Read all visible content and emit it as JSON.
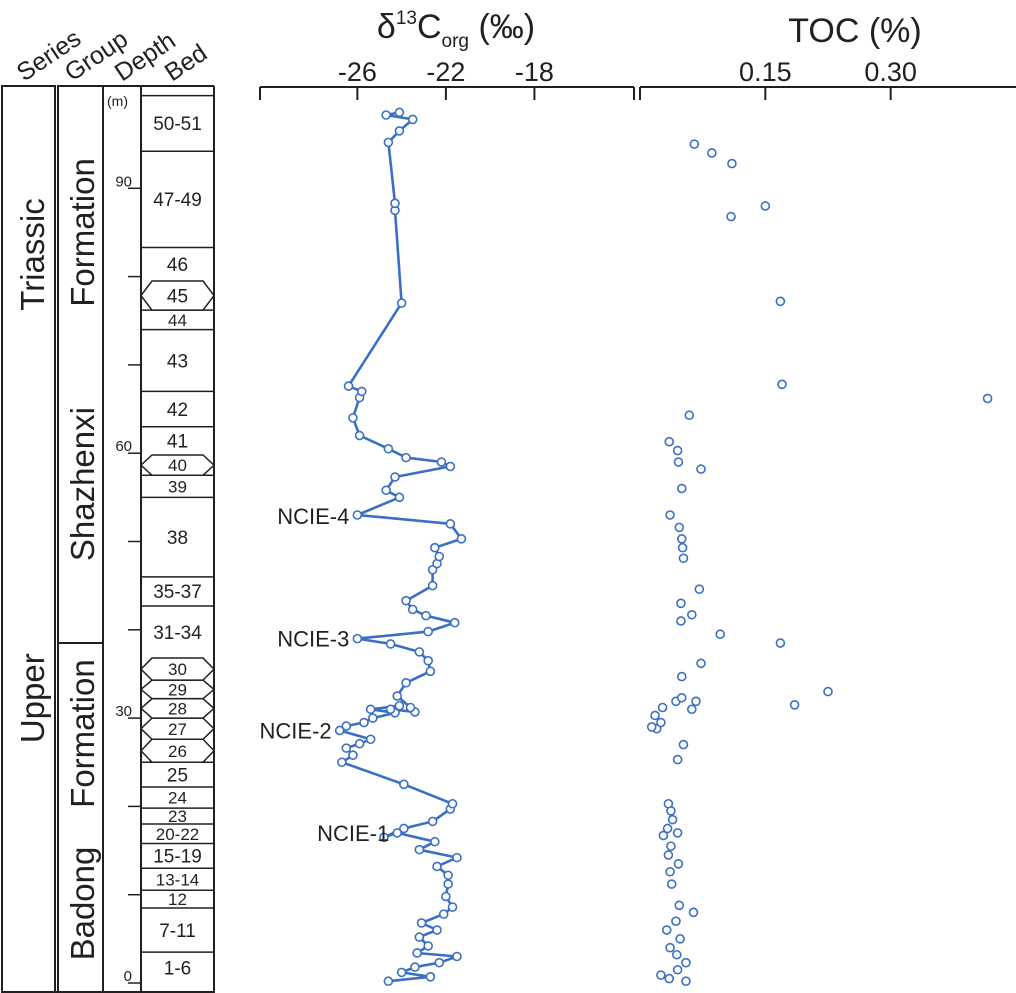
{
  "colors": {
    "series": "#3b6fc4",
    "ink": "#231f20"
  },
  "column_headers": {
    "series": "Series",
    "group": "Group",
    "depth": "Depth",
    "bed": "Bed"
  },
  "units": {
    "depth": "(m)"
  },
  "series_labels": [
    {
      "text": "Upper",
      "from": 0,
      "to": 64.5
    },
    {
      "text": "Triassic",
      "from": 64.5,
      "to": 100.5
    }
  ],
  "group_labels": [
    {
      "text": "Badong",
      "from": 0,
      "to": 18
    },
    {
      "text": "Formation",
      "from": 18,
      "to": 38.5
    },
    {
      "text": "Shazhenxi",
      "from": 43,
      "to": 70
    },
    {
      "text": "Formation",
      "from": 76,
      "to": 94
    }
  ],
  "group_boundary_depth": 38.5,
  "depth_ticks": [
    {
      "value": 0,
      "label": "0"
    },
    {
      "value": 10,
      "label": ""
    },
    {
      "value": 20,
      "label": ""
    },
    {
      "value": 30,
      "label": "30"
    },
    {
      "value": 40,
      "label": ""
    },
    {
      "value": 50,
      "label": ""
    },
    {
      "value": 60,
      "label": "60"
    },
    {
      "value": 70,
      "label": ""
    },
    {
      "value": 80,
      "label": ""
    },
    {
      "value": 90,
      "label": "90"
    }
  ],
  "beds": [
    {
      "label": "1-6",
      "top": 3.5,
      "shape": "rect"
    },
    {
      "label": "7-11",
      "top": 8.5,
      "shape": "rect"
    },
    {
      "label": "12",
      "top": 10.5,
      "shape": "rect"
    },
    {
      "label": "13-14",
      "top": 13.0,
      "shape": "rect"
    },
    {
      "label": "15-19",
      "top": 15.8,
      "shape": "rect"
    },
    {
      "label": "20-22",
      "top": 18.0,
      "shape": "rect"
    },
    {
      "label": "23",
      "top": 19.8,
      "shape": "rect"
    },
    {
      "label": "24",
      "top": 22.2,
      "shape": "rect"
    },
    {
      "label": "25",
      "top": 25.0,
      "shape": "rect"
    },
    {
      "label": "26",
      "top": 27.6,
      "shape": "hex"
    },
    {
      "label": "27",
      "top": 30.0,
      "shape": "hex"
    },
    {
      "label": "28",
      "top": 32.2,
      "shape": "hex"
    },
    {
      "label": "29",
      "top": 34.3,
      "shape": "hex"
    },
    {
      "label": "30",
      "top": 36.8,
      "shape": "hex"
    },
    {
      "label": "31-34",
      "top": 42.7,
      "shape": "rect"
    },
    {
      "label": "35-37",
      "top": 46.0,
      "shape": "rect"
    },
    {
      "label": "38",
      "top": 55.0,
      "shape": "rect"
    },
    {
      "label": "39",
      "top": 57.5,
      "shape": "rect"
    },
    {
      "label": "40",
      "top": 59.8,
      "shape": "hex"
    },
    {
      "label": "41",
      "top": 63.0,
      "shape": "rect"
    },
    {
      "label": "42",
      "top": 67.0,
      "shape": "rect"
    },
    {
      "label": "43",
      "top": 74.0,
      "shape": "rect"
    },
    {
      "label": "44",
      "top": 76.2,
      "shape": "rect"
    },
    {
      "label": "45",
      "top": 79.5,
      "shape": "hex"
    },
    {
      "label": "46",
      "top": 83.3,
      "shape": "rect"
    },
    {
      "label": "47-49",
      "top": 94.2,
      "shape": "rect"
    },
    {
      "label": "50-51",
      "top": 100.5,
      "shape": "rect"
    }
  ],
  "chart_data": [
    {
      "type": "line",
      "title_parts": {
        "base": "δ",
        "sup": "13",
        "main": "C",
        "sub": "org",
        "unit": " (‰)"
      },
      "x_ticks": [
        -26,
        -22,
        -18
      ],
      "xlim": [
        -30.4,
        -13.5
      ],
      "ylabel": "Depth (m)",
      "ylim": [
        0,
        100.5
      ],
      "annotations": [
        {
          "text": "NCIE-1",
          "depth": 17.0
        },
        {
          "text": "NCIE-2",
          "depth": 28.6
        },
        {
          "text": "NCIE-3",
          "depth": 39.0
        },
        {
          "text": "NCIE-4",
          "depth": 52.9
        }
      ],
      "points": [
        {
          "y": 0.2,
          "x": -24.6
        },
        {
          "y": 0.7,
          "x": -22.7
        },
        {
          "y": 1.2,
          "x": -24.0
        },
        {
          "y": 1.8,
          "x": -23.4
        },
        {
          "y": 2.3,
          "x": -22.3
        },
        {
          "y": 3.0,
          "x": -21.5
        },
        {
          "y": 3.4,
          "x": -23.3
        },
        {
          "y": 4.2,
          "x": -22.8
        },
        {
          "y": 5.2,
          "x": -23.2
        },
        {
          "y": 6.0,
          "x": -22.4
        },
        {
          "y": 6.8,
          "x": -23.1
        },
        {
          "y": 7.8,
          "x": -22.1
        },
        {
          "y": 8.6,
          "x": -21.7
        },
        {
          "y": 9.8,
          "x": -22.0
        },
        {
          "y": 11.2,
          "x": -21.9
        },
        {
          "y": 12.2,
          "x": -21.9
        },
        {
          "y": 13.2,
          "x": -22.4
        },
        {
          "y": 14.2,
          "x": -21.5
        },
        {
          "y": 15.1,
          "x": -23.2
        },
        {
          "y": 16.0,
          "x": -22.5
        },
        {
          "y": 17.0,
          "x": -24.2
        },
        {
          "y": 16.5,
          "x": -24.8
        },
        {
          "y": 17.5,
          "x": -23.9
        },
        {
          "y": 18.3,
          "x": -22.6
        },
        {
          "y": 19.7,
          "x": -21.8
        },
        {
          "y": 20.3,
          "x": -21.7
        },
        {
          "y": 22.5,
          "x": -23.9
        },
        {
          "y": 25.0,
          "x": -26.7
        },
        {
          "y": 25.8,
          "x": -26.2
        },
        {
          "y": 26.6,
          "x": -26.5
        },
        {
          "y": 27.1,
          "x": -25.9
        },
        {
          "y": 27.6,
          "x": -25.4
        },
        {
          "y": 28.6,
          "x": -26.8
        },
        {
          "y": 29.1,
          "x": -26.5
        },
        {
          "y": 29.5,
          "x": -25.7
        },
        {
          "y": 30.0,
          "x": -25.3
        },
        {
          "y": 30.6,
          "x": -24.3
        },
        {
          "y": 31.0,
          "x": -25.4
        },
        {
          "y": 31.4,
          "x": -24.1
        },
        {
          "y": 31.0,
          "x": -24.5
        },
        {
          "y": 30.7,
          "x": -23.4
        },
        {
          "y": 31.2,
          "x": -23.6
        },
        {
          "y": 32.5,
          "x": -24.2
        },
        {
          "y": 34.0,
          "x": -23.8
        },
        {
          "y": 35.3,
          "x": -22.7
        },
        {
          "y": 36.5,
          "x": -22.8
        },
        {
          "y": 37.5,
          "x": -23.2
        },
        {
          "y": 38.4,
          "x": -24.5
        },
        {
          "y": 39.0,
          "x": -26.0
        },
        {
          "y": 39.8,
          "x": -22.8
        },
        {
          "y": 40.8,
          "x": -21.6
        },
        {
          "y": 41.6,
          "x": -22.9
        },
        {
          "y": 42.3,
          "x": -23.5
        },
        {
          "y": 43.3,
          "x": -23.8
        },
        {
          "y": 45.0,
          "x": -22.6
        },
        {
          "y": 46.8,
          "x": -22.6
        },
        {
          "y": 47.5,
          "x": -22.4
        },
        {
          "y": 48.3,
          "x": -22.3
        },
        {
          "y": 49.3,
          "x": -22.5
        },
        {
          "y": 50.3,
          "x": -21.3
        },
        {
          "y": 52.0,
          "x": -21.8
        },
        {
          "y": 53.0,
          "x": -26.0
        },
        {
          "y": 55.0,
          "x": -24.1
        },
        {
          "y": 55.8,
          "x": -24.7
        },
        {
          "y": 57.3,
          "x": -24.3
        },
        {
          "y": 58.5,
          "x": -21.8
        },
        {
          "y": 59.0,
          "x": -22.2
        },
        {
          "y": 59.5,
          "x": -23.8
        },
        {
          "y": 60.5,
          "x": -24.6
        },
        {
          "y": 62.0,
          "x": -25.9
        },
        {
          "y": 64.0,
          "x": -26.2
        },
        {
          "y": 66.3,
          "x": -25.9
        },
        {
          "y": 67.0,
          "x": -25.8
        },
        {
          "y": 67.6,
          "x": -26.4
        },
        {
          "y": 77.0,
          "x": -24.0
        },
        {
          "y": 87.5,
          "x": -24.3
        },
        {
          "y": 88.3,
          "x": -24.3
        },
        {
          "y": 95.2,
          "x": -24.6
        },
        {
          "y": 96.5,
          "x": -24.1
        },
        {
          "y": 97.8,
          "x": -23.5
        },
        {
          "y": 98.3,
          "x": -24.7
        },
        {
          "y": 98.6,
          "x": -24.1
        }
      ]
    },
    {
      "type": "scatter",
      "title": "TOC (%)",
      "x_ticks": [
        0.15,
        0.3
      ],
      "xlim": [
        0,
        0.45
      ],
      "ylim": [
        0,
        100.5
      ],
      "points": [
        {
          "y": 0.2,
          "x": 0.055
        },
        {
          "y": 0.5,
          "x": 0.035
        },
        {
          "y": 0.9,
          "x": 0.025
        },
        {
          "y": 1.5,
          "x": 0.045
        },
        {
          "y": 2.3,
          "x": 0.055
        },
        {
          "y": 3.2,
          "x": 0.044
        },
        {
          "y": 4.0,
          "x": 0.036
        },
        {
          "y": 5.0,
          "x": 0.048
        },
        {
          "y": 6.0,
          "x": 0.032
        },
        {
          "y": 7.0,
          "x": 0.043
        },
        {
          "y": 8.0,
          "x": 0.064
        },
        {
          "y": 8.8,
          "x": 0.047
        },
        {
          "y": 11.2,
          "x": 0.038
        },
        {
          "y": 12.6,
          "x": 0.036
        },
        {
          "y": 13.5,
          "x": 0.046
        },
        {
          "y": 14.5,
          "x": 0.034
        },
        {
          "y": 15.5,
          "x": 0.037
        },
        {
          "y": 16.7,
          "x": 0.028
        },
        {
          "y": 17.0,
          "x": 0.045
        },
        {
          "y": 17.5,
          "x": 0.033
        },
        {
          "y": 18.5,
          "x": 0.039
        },
        {
          "y": 19.5,
          "x": 0.037
        },
        {
          "y": 20.3,
          "x": 0.034
        },
        {
          "y": 25.3,
          "x": 0.045
        },
        {
          "y": 27.0,
          "x": 0.052
        },
        {
          "y": 28.8,
          "x": 0.02
        },
        {
          "y": 29.0,
          "x": 0.014
        },
        {
          "y": 29.5,
          "x": 0.025
        },
        {
          "y": 30.3,
          "x": 0.018
        },
        {
          "y": 31.2,
          "x": 0.027
        },
        {
          "y": 31.9,
          "x": 0.043
        },
        {
          "y": 31.0,
          "x": 0.062
        },
        {
          "y": 32.3,
          "x": 0.05
        },
        {
          "y": 31.9,
          "x": 0.067
        },
        {
          "y": 31.5,
          "x": 0.185
        },
        {
          "y": 33.0,
          "x": 0.225
        },
        {
          "y": 34.7,
          "x": 0.05
        },
        {
          "y": 36.2,
          "x": 0.073
        },
        {
          "y": 38.5,
          "x": 0.168
        },
        {
          "y": 39.5,
          "x": 0.096
        },
        {
          "y": 41.0,
          "x": 0.049
        },
        {
          "y": 41.7,
          "x": 0.062
        },
        {
          "y": 43.0,
          "x": 0.049
        },
        {
          "y": 44.6,
          "x": 0.071
        },
        {
          "y": 48.1,
          "x": 0.052
        },
        {
          "y": 49.3,
          "x": 0.051
        },
        {
          "y": 50.3,
          "x": 0.05
        },
        {
          "y": 51.6,
          "x": 0.047
        },
        {
          "y": 53.0,
          "x": 0.036
        },
        {
          "y": 56.0,
          "x": 0.05
        },
        {
          "y": 58.2,
          "x": 0.073
        },
        {
          "y": 59.0,
          "x": 0.046
        },
        {
          "y": 60.3,
          "x": 0.045
        },
        {
          "y": 61.3,
          "x": 0.035
        },
        {
          "y": 64.3,
          "x": 0.059
        },
        {
          "y": 66.2,
          "x": 0.416
        },
        {
          "y": 67.8,
          "x": 0.17
        },
        {
          "y": 77.2,
          "x": 0.168
        },
        {
          "y": 86.8,
          "x": 0.109
        },
        {
          "y": 88.0,
          "x": 0.15
        },
        {
          "y": 92.8,
          "x": 0.11
        },
        {
          "y": 94.0,
          "x": 0.086
        },
        {
          "y": 95.0,
          "x": 0.065
        }
      ]
    }
  ]
}
